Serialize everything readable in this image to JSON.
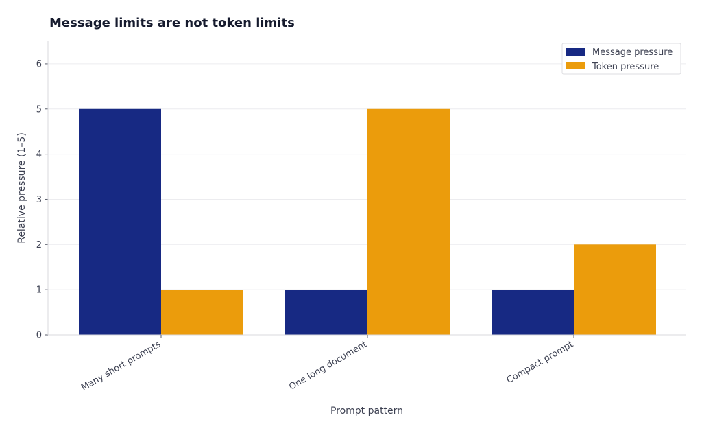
{
  "chart_data": {
    "type": "bar",
    "title": "Message limits are not token limits",
    "xlabel": "Prompt pattern",
    "ylabel": "Relative pressure (1–5)",
    "categories": [
      "Many short prompts",
      "One long document",
      "Compact prompt"
    ],
    "series": [
      {
        "name": "Message pressure",
        "values": [
          5,
          1,
          1
        ],
        "color": "#172983"
      },
      {
        "name": "Token pressure",
        "values": [
          1,
          5,
          2
        ],
        "color": "#eb9c0c"
      }
    ],
    "ylim": [
      0,
      6.5
    ],
    "yticks": [
      "0",
      "1",
      "2",
      "3",
      "4",
      "5",
      "6"
    ],
    "grid": true,
    "legend_position": "top-right"
  }
}
